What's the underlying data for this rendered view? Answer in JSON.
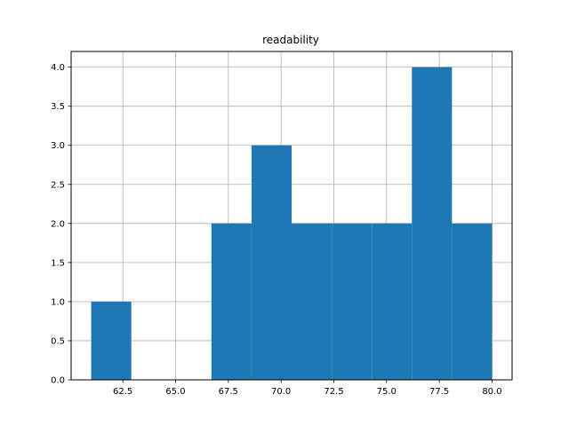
{
  "chart_data": {
    "type": "bar",
    "title": "readability",
    "xlabel": "",
    "ylabel": "",
    "bins": [
      {
        "start": 61.0,
        "end": 62.9,
        "count": 1
      },
      {
        "start": 62.9,
        "end": 64.8,
        "count": 0
      },
      {
        "start": 64.8,
        "end": 66.7,
        "count": 0
      },
      {
        "start": 66.7,
        "end": 68.6,
        "count": 2
      },
      {
        "start": 68.6,
        "end": 70.5,
        "count": 3
      },
      {
        "start": 70.5,
        "end": 72.4,
        "count": 2
      },
      {
        "start": 72.4,
        "end": 74.3,
        "count": 2
      },
      {
        "start": 74.3,
        "end": 76.2,
        "count": 2
      },
      {
        "start": 76.2,
        "end": 78.1,
        "count": 4
      },
      {
        "start": 78.1,
        "end": 80.0,
        "count": 2
      }
    ],
    "xlim": [
      60.05,
      80.95
    ],
    "ylim": [
      0,
      4.2
    ],
    "xticks": [
      "62.5",
      "65.0",
      "67.5",
      "70.0",
      "72.5",
      "75.0",
      "77.5",
      "80.0"
    ],
    "yticks": [
      "0.0",
      "0.5",
      "1.0",
      "1.5",
      "2.0",
      "2.5",
      "3.0",
      "3.5",
      "4.0"
    ],
    "grid": true,
    "legend": "none",
    "bar_color": "#1f77b4",
    "grid_color": "#b0b0b0"
  }
}
